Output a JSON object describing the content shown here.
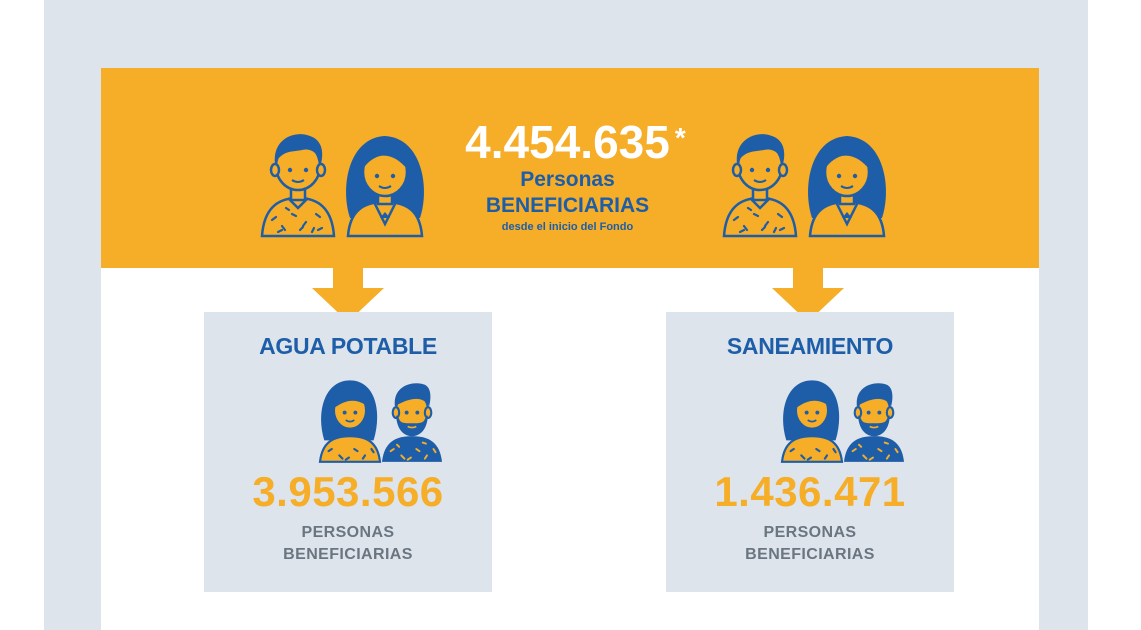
{
  "header": {
    "total_value": "4.454.635",
    "total_asterisk": "*",
    "line1": "Personas",
    "line2": "BENEFICIARIAS",
    "line3": "desde el inicio del Fondo"
  },
  "categories": [
    {
      "title": "AGUA POTABLE",
      "value": "3.953.566",
      "label_line1": "PERSONAS",
      "label_line2": "BENEFICIARIAS"
    },
    {
      "title": "SANEAMIENTO",
      "value": "1.436.471",
      "label_line1": "PERSONAS",
      "label_line2": "BENEFICIARIAS"
    }
  ],
  "colors": {
    "orange": "#f6ad27",
    "blue": "#1e5ea8",
    "grey_bg": "#dde4ec",
    "grey_text": "#6b7580"
  },
  "icons": [
    "man-icon",
    "woman-icon",
    "arrow-down-icon"
  ]
}
